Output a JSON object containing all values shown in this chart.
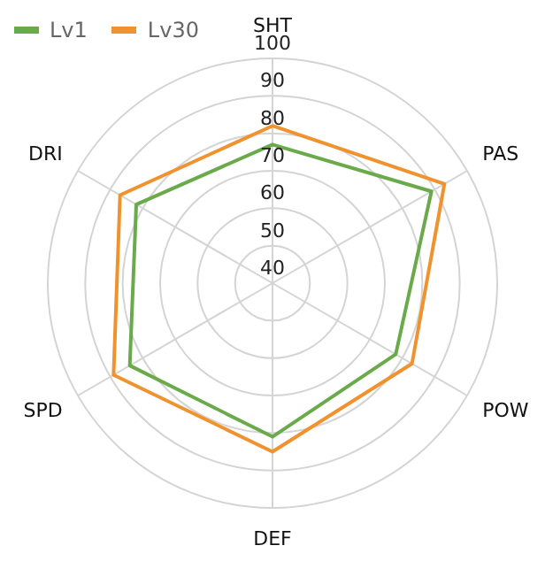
{
  "chart_data": {
    "type": "radar",
    "categories": [
      "SHT",
      "PAS",
      "POW",
      "DEF",
      "SPD",
      "DRI"
    ],
    "series": [
      {
        "name": "Lv1",
        "color": "#6aaa4a",
        "values": [
          77,
          89,
          78,
          81,
          84,
          82
        ]
      },
      {
        "name": "Lv30",
        "color": "#f0922e",
        "values": [
          82,
          93,
          83,
          85,
          89,
          87
        ]
      }
    ],
    "ylim": [
      40,
      100
    ],
    "yticks": [
      40,
      50,
      60,
      70,
      80,
      90,
      100
    ],
    "grid": true,
    "legend": "top left",
    "marker": "none"
  }
}
